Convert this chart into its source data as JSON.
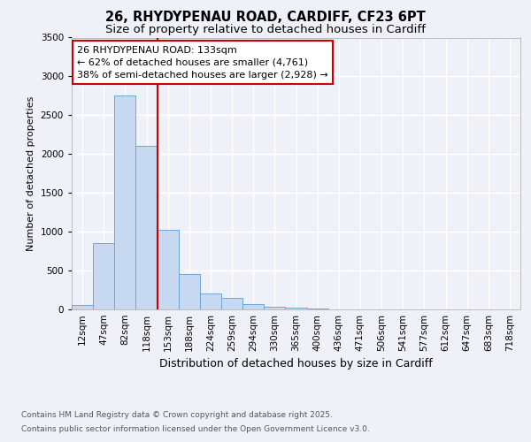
{
  "title_line1": "26, RHYDYPENAU ROAD, CARDIFF, CF23 6PT",
  "title_line2": "Size of property relative to detached houses in Cardiff",
  "xlabel": "Distribution of detached houses by size in Cardiff",
  "ylabel": "Number of detached properties",
  "bar_labels": [
    "12sqm",
    "47sqm",
    "82sqm",
    "118sqm",
    "153sqm",
    "188sqm",
    "224sqm",
    "259sqm",
    "294sqm",
    "330sqm",
    "365sqm",
    "400sqm",
    "436sqm",
    "471sqm",
    "506sqm",
    "541sqm",
    "577sqm",
    "612sqm",
    "647sqm",
    "683sqm",
    "718sqm"
  ],
  "bar_values": [
    55,
    850,
    2750,
    2100,
    1030,
    455,
    210,
    150,
    65,
    35,
    20,
    15,
    5,
    3,
    2,
    1,
    1,
    1,
    0,
    0,
    0
  ],
  "bar_color": "#c6d9f0",
  "bar_edgecolor": "#6ea6d0",
  "vline_x_idx": 3.5,
  "vline_color": "#cc0000",
  "ylim": [
    0,
    3500
  ],
  "yticks": [
    0,
    500,
    1000,
    1500,
    2000,
    2500,
    3000,
    3500
  ],
  "annotation_title": "26 RHYDYPENAU ROAD: 133sqm",
  "annotation_line1": "← 62% of detached houses are smaller (4,761)",
  "annotation_line2": "38% of semi-detached houses are larger (2,928) →",
  "annotation_box_color": "#cc0000",
  "footer_line1": "Contains HM Land Registry data © Crown copyright and database right 2025.",
  "footer_line2": "Contains public sector information licensed under the Open Government Licence v3.0.",
  "bg_color": "#eef2f8",
  "plot_bg_color": "#eef2f8",
  "grid_color": "#ffffff",
  "title1_fontsize": 10.5,
  "title2_fontsize": 9.5,
  "ylabel_fontsize": 8,
  "xlabel_fontsize": 9,
  "tick_fontsize": 7.5,
  "ann_fontsize": 8
}
